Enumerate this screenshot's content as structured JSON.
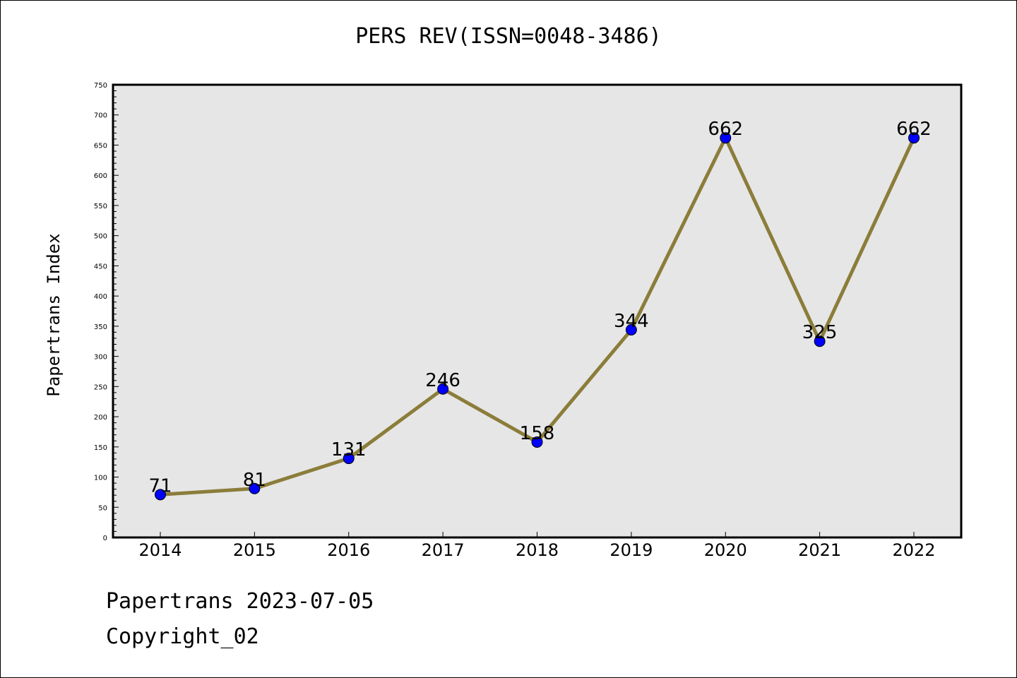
{
  "chart_data": {
    "type": "line",
    "title": "PERS REV(ISSN=0048-3486)",
    "xlabel": "",
    "ylabel": "Papertrans Index",
    "categories": [
      "2014",
      "2015",
      "2016",
      "2017",
      "2018",
      "2019",
      "2020",
      "2021",
      "2022"
    ],
    "series": [
      {
        "values": [
          71,
          81,
          131,
          246,
          158,
          344,
          662,
          325,
          662
        ]
      }
    ],
    "data_labels": [
      "71",
      "81",
      "131",
      "246",
      "158",
      "344",
      "662",
      "325",
      "662"
    ],
    "ylim": [
      0,
      750
    ],
    "yticks": [
      "0",
      "50",
      "100",
      "150",
      "200",
      "250",
      "300",
      "350",
      "400",
      "450",
      "500",
      "550",
      "600",
      "650",
      "700",
      "750"
    ],
    "grid": false,
    "legend": "none",
    "colors": {
      "line": "#8b7d3a",
      "marker": "#0000ff",
      "plot_background": "#e6e6e6"
    }
  },
  "footer": {
    "line1": "Papertrans 2023-07-05",
    "line2": "Copyright_02"
  }
}
